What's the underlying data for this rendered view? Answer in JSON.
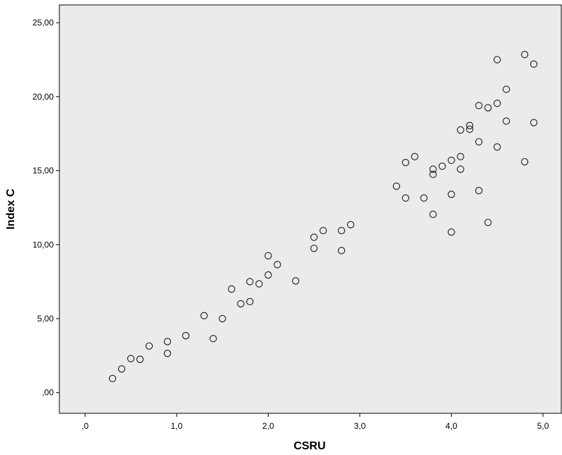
{
  "chart_data": {
    "type": "scatter",
    "xlabel": "CSRU",
    "ylabel": "Index C",
    "xlim": [
      -0.28,
      5.2
    ],
    "ylim": [
      -1.4,
      26.2
    ],
    "x_ticks": [
      0,
      1,
      2,
      3,
      4,
      5
    ],
    "x_tick_labels": [
      ",0",
      "1,0",
      "2,0",
      "3,0",
      "4,0",
      "5,0"
    ],
    "y_ticks": [
      0,
      5,
      10,
      15,
      20,
      25
    ],
    "y_tick_labels": [
      ",00",
      "5,00",
      "10,00",
      "15,00",
      "20,00",
      "25,00"
    ],
    "grid": false,
    "plot_background": "#ebebeb",
    "marker": "open-circle",
    "points": [
      {
        "x": 0.3,
        "y": 0.95
      },
      {
        "x": 0.4,
        "y": 1.6
      },
      {
        "x": 0.5,
        "y": 2.3
      },
      {
        "x": 0.6,
        "y": 2.25
      },
      {
        "x": 0.7,
        "y": 3.15
      },
      {
        "x": 0.9,
        "y": 3.45
      },
      {
        "x": 0.9,
        "y": 2.65
      },
      {
        "x": 1.1,
        "y": 3.85
      },
      {
        "x": 1.3,
        "y": 5.2
      },
      {
        "x": 1.4,
        "y": 3.65
      },
      {
        "x": 1.5,
        "y": 5.0
      },
      {
        "x": 1.6,
        "y": 7.0
      },
      {
        "x": 1.7,
        "y": 6.0
      },
      {
        "x": 1.8,
        "y": 7.5
      },
      {
        "x": 1.8,
        "y": 6.15
      },
      {
        "x": 1.9,
        "y": 7.35
      },
      {
        "x": 2.0,
        "y": 9.25
      },
      {
        "x": 2.0,
        "y": 7.95
      },
      {
        "x": 2.1,
        "y": 8.65
      },
      {
        "x": 2.3,
        "y": 7.55
      },
      {
        "x": 2.5,
        "y": 10.5
      },
      {
        "x": 2.5,
        "y": 9.75
      },
      {
        "x": 2.6,
        "y": 10.95
      },
      {
        "x": 2.8,
        "y": 10.95
      },
      {
        "x": 2.8,
        "y": 9.6
      },
      {
        "x": 2.9,
        "y": 11.35
      },
      {
        "x": 3.4,
        "y": 13.95
      },
      {
        "x": 3.5,
        "y": 15.55
      },
      {
        "x": 3.5,
        "y": 13.15
      },
      {
        "x": 3.6,
        "y": 15.95
      },
      {
        "x": 3.7,
        "y": 13.15
      },
      {
        "x": 3.8,
        "y": 15.1
      },
      {
        "x": 3.8,
        "y": 14.75
      },
      {
        "x": 3.8,
        "y": 12.05
      },
      {
        "x": 3.9,
        "y": 15.3
      },
      {
        "x": 4.0,
        "y": 15.7
      },
      {
        "x": 4.0,
        "y": 13.4
      },
      {
        "x": 4.0,
        "y": 10.85
      },
      {
        "x": 4.1,
        "y": 17.75
      },
      {
        "x": 4.1,
        "y": 15.95
      },
      {
        "x": 4.1,
        "y": 15.1
      },
      {
        "x": 4.2,
        "y": 18.05
      },
      {
        "x": 4.2,
        "y": 17.8
      },
      {
        "x": 4.3,
        "y": 19.4
      },
      {
        "x": 4.3,
        "y": 16.95
      },
      {
        "x": 4.3,
        "y": 13.65
      },
      {
        "x": 4.4,
        "y": 19.25
      },
      {
        "x": 4.4,
        "y": 11.5
      },
      {
        "x": 4.5,
        "y": 22.5
      },
      {
        "x": 4.5,
        "y": 19.55
      },
      {
        "x": 4.5,
        "y": 16.6
      },
      {
        "x": 4.6,
        "y": 20.5
      },
      {
        "x": 4.6,
        "y": 18.35
      },
      {
        "x": 4.8,
        "y": 22.85
      },
      {
        "x": 4.8,
        "y": 15.6
      },
      {
        "x": 4.9,
        "y": 22.2
      },
      {
        "x": 4.9,
        "y": 18.25
      }
    ]
  }
}
